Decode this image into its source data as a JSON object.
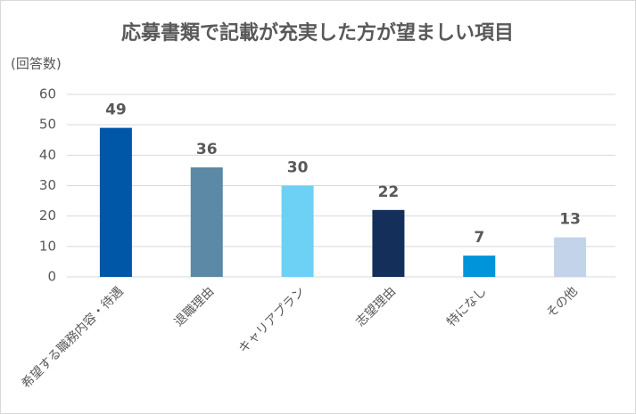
{
  "chart_data": {
    "type": "bar",
    "title": "応募書類で記載が充実した方が望ましい項目",
    "y_label": "(回答数)",
    "categories": [
      "希望する職務内容・待遇",
      "退職理由",
      "キャリアプラン",
      "志望理由",
      "特になし",
      "その他"
    ],
    "values": [
      49,
      36,
      30,
      22,
      7,
      13
    ],
    "colors": [
      "#0057a8",
      "#5b89a6",
      "#6dd0f5",
      "#14305a",
      "#0094d9",
      "#c3d4ea"
    ],
    "ylim": [
      0,
      60
    ],
    "yticks": [
      0,
      10,
      20,
      30,
      40,
      50,
      60
    ],
    "grid": true
  }
}
